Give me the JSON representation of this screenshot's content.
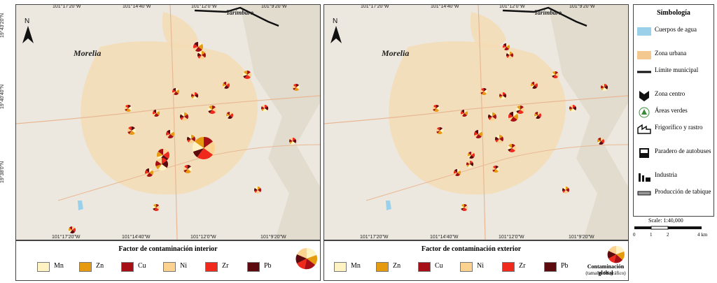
{
  "top_coords": [
    "101°17'20\"W",
    "101°14'40\"W",
    "101°12'0\"W",
    "101°9'20\"W"
  ],
  "bottom_coords": [
    "101°17'20\"W",
    "101°14'40\"W",
    "101°12'0\"W",
    "101°9'20\"W"
  ],
  "left_coords": [
    "19°43'20\"N",
    "19°40'40\"N",
    "19°38'0\"N"
  ],
  "north_label": "N",
  "city_label": "Morelia",
  "town_label": "Tarímbaro",
  "legend_left": {
    "title": "Factor de contaminación interior",
    "items": [
      {
        "label": "Mn",
        "color": "#fff3c4"
      },
      {
        "label": "Zn",
        "color": "#e69a10"
      },
      {
        "label": "Cu",
        "color": "#a50f15"
      },
      {
        "label": "Ni",
        "color": "#fcd290"
      },
      {
        "label": "Zr",
        "color": "#ef2a1c"
      },
      {
        "label": "Pb",
        "color": "#5c0a0d"
      }
    ]
  },
  "legend_right": {
    "title": "Factor de contaminación exterior",
    "items": [
      {
        "label": "Mn",
        "color": "#fff3c4"
      },
      {
        "label": "Zn",
        "color": "#e69a10"
      },
      {
        "label": "Cu",
        "color": "#a50f15"
      },
      {
        "label": "Ni",
        "color": "#fcd290"
      },
      {
        "label": "Zr",
        "color": "#ef2a1c"
      },
      {
        "label": "Pb",
        "color": "#5c0a0d"
      }
    ],
    "global_title": "Contaminación global",
    "global_sub": "(tamaño del gráfico)"
  },
  "symbology": {
    "title": "Simbología",
    "items": [
      {
        "label": "Cuerpos de agua",
        "icon": "water-body-icon"
      },
      {
        "label": "Zona urbana",
        "icon": "urban-zone-icon"
      },
      {
        "label": "Límite municipal",
        "icon": "municipal-limit-icon"
      },
      {
        "label": "Zona centro",
        "icon": "downtown-marker-icon"
      },
      {
        "label": "Áreas verdes",
        "icon": "tree-icon"
      },
      {
        "label": "Frigorífico y rastro",
        "icon": "slaughterhouse-icon"
      },
      {
        "label": "Paradero de autobuses",
        "icon": "bus-stop-icon"
      },
      {
        "label": "Industria",
        "icon": "factory-icon"
      },
      {
        "label": "Producción de tabique",
        "icon": "brick-production-icon"
      }
    ]
  },
  "scale": {
    "title": "Scale: 1:40,000",
    "labels": [
      "0",
      "1",
      "2",
      "4 km"
    ]
  }
}
